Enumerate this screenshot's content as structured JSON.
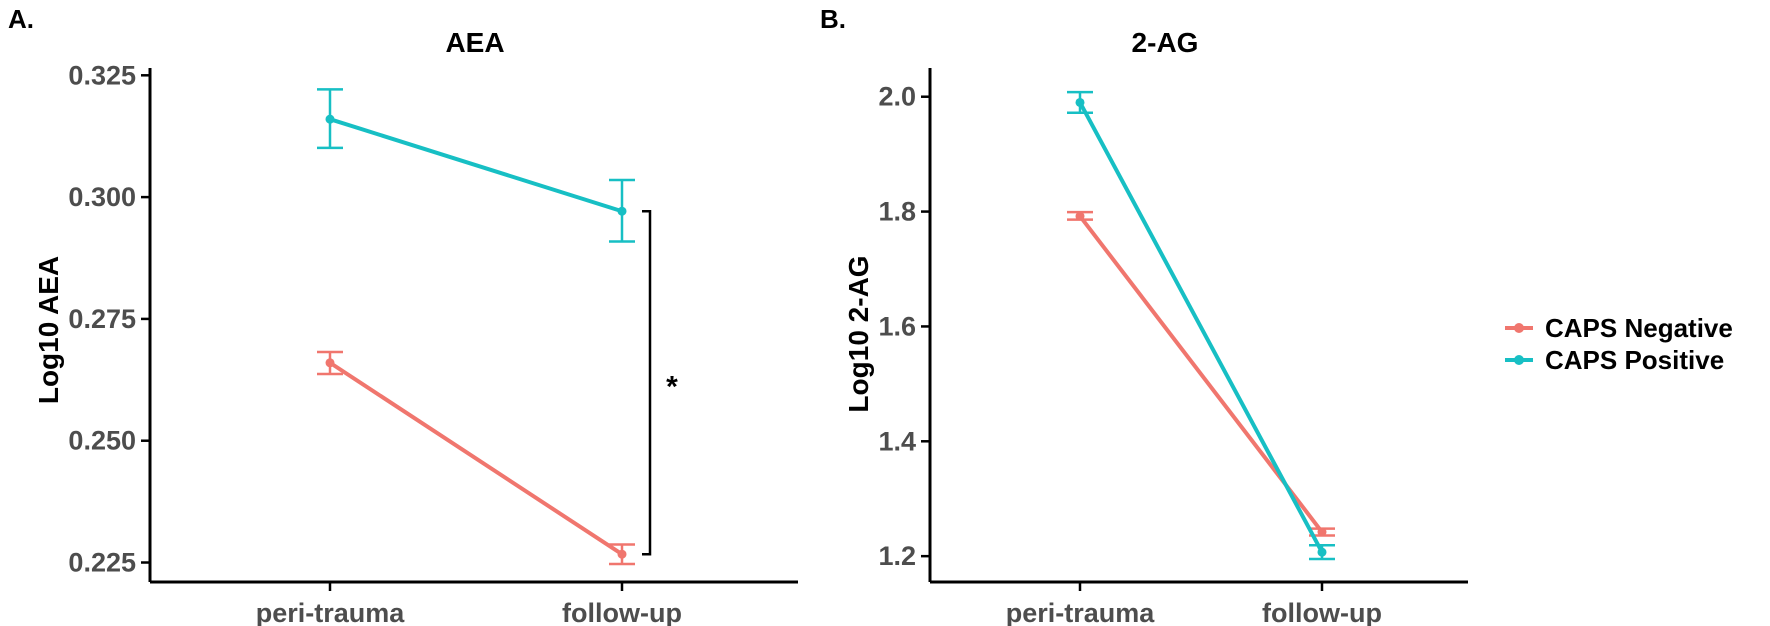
{
  "colors": {
    "caps_negative": "#F0766E",
    "caps_positive": "#17BFC4",
    "axis": "#000000",
    "tick_text": "#4D4D4D"
  },
  "legend": {
    "items": [
      {
        "label": "CAPS Negative",
        "color": "#F0766E"
      },
      {
        "label": "CAPS Positive",
        "color": "#17BFC4"
      }
    ],
    "placement": "right"
  },
  "chart_data": [
    {
      "panel": "A.",
      "type": "line",
      "title": "AEA",
      "xlabel": "",
      "ylabel": "Log10 AEA",
      "categories": [
        "peri-trauma",
        "follow-up"
      ],
      "ylim": [
        0.221,
        0.3265
      ],
      "yticks": [
        0.225,
        0.25,
        0.275,
        0.3,
        0.325
      ],
      "ytick_labels": [
        "0.225",
        "0.250",
        "0.275",
        "0.300",
        "0.325"
      ],
      "grid": false,
      "series": [
        {
          "name": "CAPS Negative",
          "color": "#F0766E",
          "values": [
            0.266,
            0.2267
          ],
          "err_low": [
            0.2637,
            0.2247
          ],
          "err_high": [
            0.2682,
            0.2287
          ]
        },
        {
          "name": "CAPS Positive",
          "color": "#17BFC4",
          "values": [
            0.316,
            0.2971
          ],
          "err_low": [
            0.3101,
            0.2909
          ],
          "err_high": [
            0.3221,
            0.3035
          ]
        }
      ],
      "annotation": {
        "text": "*",
        "from_value": 0.2971,
        "to_value": 0.2267
      }
    },
    {
      "panel": "B.",
      "type": "line",
      "title": "2-AG",
      "xlabel": "",
      "ylabel": "Log10 2-AG",
      "categories": [
        "peri-trauma",
        "follow-up"
      ],
      "ylim": [
        1.155,
        2.05
      ],
      "yticks": [
        1.2,
        1.4,
        1.6,
        1.8,
        2.0
      ],
      "ytick_labels": [
        "1.2",
        "1.4",
        "1.6",
        "1.8",
        "2.0"
      ],
      "grid": false,
      "series": [
        {
          "name": "CAPS Negative",
          "color": "#F0766E",
          "values": [
            1.792,
            1.242
          ],
          "err_low": [
            1.786,
            1.236
          ],
          "err_high": [
            1.799,
            1.248
          ]
        },
        {
          "name": "CAPS Positive",
          "color": "#17BFC4",
          "values": [
            1.99,
            1.207
          ],
          "err_low": [
            1.972,
            1.195
          ],
          "err_high": [
            2.008,
            1.219
          ]
        }
      ]
    }
  ]
}
